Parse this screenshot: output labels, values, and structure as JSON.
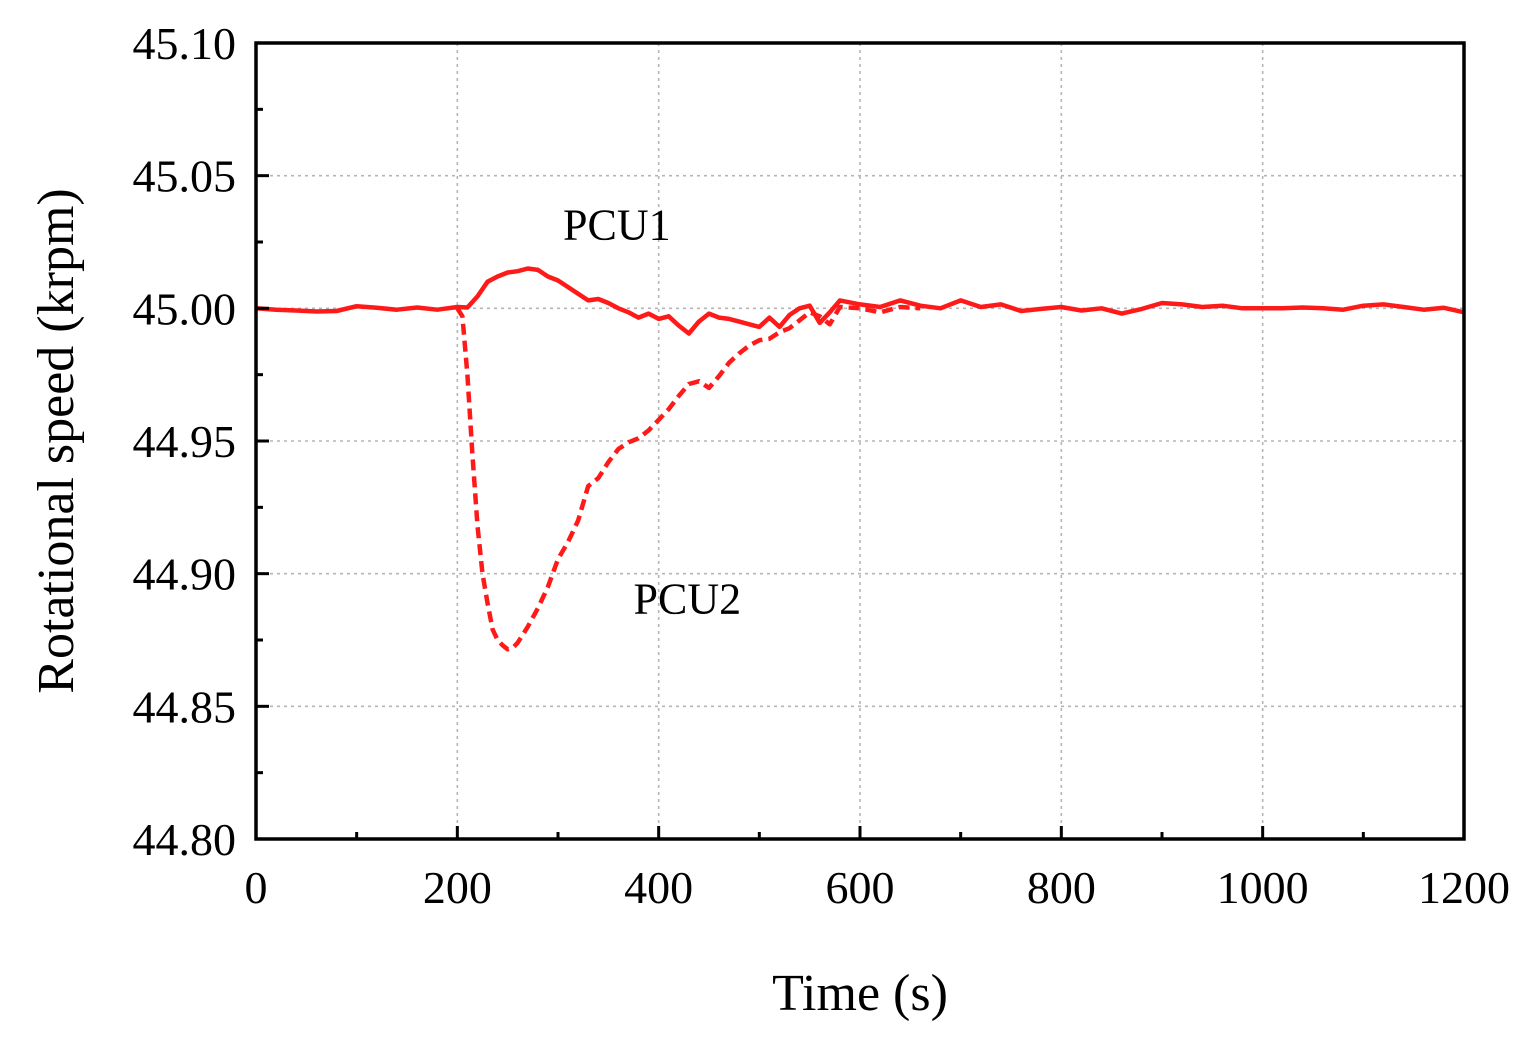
{
  "chart_data": {
    "type": "line",
    "title": "",
    "xlabel": "Time (s)",
    "ylabel": "Rotational speed (krpm)",
    "xlim": [
      0,
      1200
    ],
    "ylim": [
      44.8,
      45.1
    ],
    "xticks": [
      0,
      200,
      400,
      600,
      800,
      1000,
      1200
    ],
    "xtick_labels": [
      "0",
      "200",
      "400",
      "600",
      "800",
      "1000",
      "1200"
    ],
    "yticks": [
      44.8,
      44.85,
      44.9,
      44.95,
      45.0,
      45.05,
      45.1
    ],
    "ytick_labels": [
      "44.80",
      "44.85",
      "44.90",
      "44.95",
      "45.00",
      "45.05",
      "45.10"
    ],
    "grid": true,
    "legend": "none",
    "color": "#ff1a1a",
    "series": [
      {
        "name": "PCU1",
        "style": "solid",
        "x": [
          0,
          20,
          40,
          60,
          80,
          100,
          120,
          140,
          160,
          180,
          200,
          210,
          220,
          230,
          240,
          250,
          260,
          270,
          280,
          290,
          300,
          310,
          320,
          330,
          340,
          350,
          360,
          370,
          380,
          390,
          400,
          410,
          420,
          430,
          440,
          450,
          460,
          470,
          480,
          490,
          500,
          510,
          520,
          530,
          540,
          550,
          560,
          570,
          580,
          600,
          620,
          640,
          660,
          680,
          700,
          720,
          740,
          760,
          780,
          800,
          820,
          840,
          860,
          880,
          900,
          920,
          940,
          960,
          980,
          1000,
          1020,
          1040,
          1060,
          1080,
          1100,
          1120,
          1140,
          1160,
          1180,
          1200
        ],
        "y": [
          45.0,
          44.9995,
          44.9992,
          44.9988,
          44.999,
          45.0008,
          45.0002,
          44.9995,
          45.0003,
          44.9995,
          45.0005,
          45.0003,
          45.0045,
          45.01,
          45.012,
          45.0135,
          45.014,
          45.015,
          45.0145,
          45.012,
          45.0105,
          45.008,
          45.0055,
          45.003,
          45.0035,
          45.002,
          45.0,
          44.9985,
          44.9965,
          44.998,
          44.996,
          44.997,
          44.9935,
          44.9905,
          44.995,
          44.998,
          44.9965,
          44.996,
          44.995,
          44.994,
          44.993,
          44.9965,
          44.993,
          44.9975,
          45.0,
          45.001,
          44.9945,
          44.9985,
          45.003,
          45.0015,
          45.0005,
          45.003,
          45.001,
          45.0,
          45.003,
          45.0005,
          45.0015,
          44.999,
          44.9998,
          45.0005,
          44.9992,
          45.0,
          44.998,
          44.9998,
          45.002,
          45.0015,
          45.0005,
          45.001,
          45.0,
          45.0,
          45.0,
          45.0003,
          45.0,
          44.9995,
          45.001,
          45.0015,
          45.0005,
          44.9995,
          45.0002,
          44.9985
        ]
      },
      {
        "name": "PCU2",
        "style": "dashed",
        "x": [
          200,
          205,
          210,
          215,
          220,
          225,
          230,
          235,
          240,
          245,
          250,
          255,
          260,
          265,
          270,
          280,
          290,
          300,
          310,
          320,
          330,
          340,
          350,
          360,
          370,
          380,
          390,
          400,
          410,
          420,
          430,
          440,
          450,
          460,
          470,
          480,
          490,
          500,
          510,
          520,
          530,
          540,
          550,
          560,
          570,
          580,
          600,
          620,
          640,
          660
        ],
        "y": [
          45.0,
          44.997,
          44.975,
          44.945,
          44.918,
          44.9,
          44.889,
          44.879,
          44.875,
          44.873,
          44.8715,
          44.872,
          44.874,
          44.877,
          44.88,
          44.887,
          44.895,
          44.9055,
          44.912,
          44.92,
          44.933,
          44.936,
          44.942,
          44.947,
          44.9495,
          44.951,
          44.954,
          44.958,
          44.962,
          44.967,
          44.9715,
          44.9725,
          44.97,
          44.9745,
          44.9795,
          44.983,
          44.986,
          44.988,
          44.9885,
          44.991,
          44.9925,
          44.9955,
          44.9985,
          44.997,
          44.994,
          45.0005,
          45.0,
          44.9985,
          45.0005,
          45.0
        ]
      }
    ],
    "annotations": [
      {
        "text": "PCU1",
        "x": 305,
        "y": 45.026
      },
      {
        "text": "PCU2",
        "x": 375,
        "y": 44.885
      }
    ]
  }
}
